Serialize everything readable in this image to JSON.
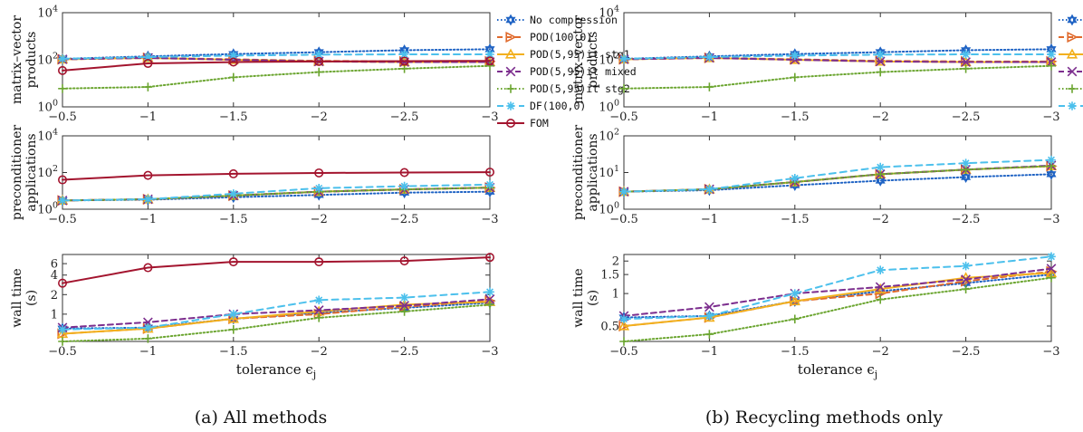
{
  "captions": {
    "a": "(a) All methods",
    "b": "(b) Recycling methods only"
  },
  "colors": {
    "No compression": "#1f63c4",
    "POD(100,0)": "#e06a2c",
    "POD(5,95)it stg1": "#f2b01e",
    "POD(5,95)it mixed": "#7c2e8e",
    "POD(5,95)it stg2": "#6ba530",
    "DF(100,0)": "#4cc0ec",
    "FOM": "#a3142e"
  },
  "chart_data": [
    {
      "id": "a-matvec",
      "type": "line",
      "yscale": "log",
      "ylabel_lines": [
        "matrix–vector",
        "products"
      ],
      "ylim": [
        1,
        10000
      ],
      "yticks": [
        1,
        100,
        10000
      ],
      "ytick_labels": [
        "10^0",
        "10^2",
        "10^4"
      ],
      "xlim": [
        -0.5,
        -3
      ],
      "x": [
        -0.5,
        -1,
        -1.5,
        -2,
        -2.5,
        -3
      ],
      "xtick_labels": [
        "−0.5",
        "−1",
        "−1.5",
        "−2",
        "−2.5",
        "−3"
      ],
      "legend": {
        "position": "right",
        "entries": [
          "No compression",
          "POD(100,0)",
          "POD(5,95)it stg1",
          "POD(5,95)it mixed",
          "POD(5,95)it stg2",
          "DF(100,0)",
          "FOM"
        ]
      },
      "series": [
        {
          "name": "No compression",
          "values": [
            110,
            140,
            175,
            210,
            255,
            280
          ]
        },
        {
          "name": "POD(100,0)",
          "values": [
            105,
            120,
            105,
            90,
            85,
            85
          ]
        },
        {
          "name": "POD(5,95)it stg1",
          "values": [
            105,
            120,
            100,
            85,
            80,
            80
          ]
        },
        {
          "name": "POD(5,95)it mixed",
          "values": [
            105,
            120,
            100,
            85,
            80,
            80
          ]
        },
        {
          "name": "POD(5,95)it stg2",
          "values": [
            6,
            7,
            18,
            30,
            42,
            55
          ]
        },
        {
          "name": "DF(100,0)",
          "values": [
            110,
            130,
            150,
            165,
            170,
            170
          ]
        },
        {
          "name": "FOM",
          "values": [
            35,
            70,
            80,
            85,
            88,
            90
          ]
        }
      ]
    },
    {
      "id": "a-precond",
      "type": "line",
      "yscale": "log",
      "ylabel_lines": [
        "preconditioner",
        "applications"
      ],
      "ylim": [
        1,
        10000
      ],
      "yticks": [
        1,
        100,
        10000
      ],
      "ytick_labels": [
        "10^0",
        "10^2",
        "10^4"
      ],
      "xlim": [
        -0.5,
        -3
      ],
      "x": [
        -0.5,
        -1,
        -1.5,
        -2,
        -2.5,
        -3
      ],
      "xtick_labels": [
        "−0.5",
        "−1",
        "−1.5",
        "−2",
        "−2.5",
        "−3"
      ],
      "series": [
        {
          "name": "No compression",
          "values": [
            3,
            3.3,
            4.5,
            6,
            8,
            9
          ]
        },
        {
          "name": "POD(100,0)",
          "values": [
            3,
            3.5,
            5.5,
            9,
            12,
            15
          ]
        },
        {
          "name": "POD(5,95)it stg1",
          "values": [
            3,
            3.5,
            5.5,
            9,
            12,
            15
          ]
        },
        {
          "name": "POD(5,95)it mixed",
          "values": [
            3,
            3.5,
            5.5,
            9,
            12,
            15
          ]
        },
        {
          "name": "POD(5,95)it stg2",
          "values": [
            3,
            3.5,
            5.5,
            9,
            12,
            15
          ]
        },
        {
          "name": "DF(100,0)",
          "values": [
            3,
            3.5,
            7,
            14,
            18,
            22
          ]
        },
        {
          "name": "FOM",
          "values": [
            40,
            70,
            85,
            95,
            100,
            105
          ]
        }
      ]
    },
    {
      "id": "a-walltime",
      "type": "line",
      "yscale": "log",
      "ylabel_lines": [
        "wall time",
        "(s)"
      ],
      "ylim": [
        0.38,
        8.3
      ],
      "yticks": [
        1,
        2,
        4,
        6
      ],
      "ytick_labels": [
        "1",
        "2",
        "4",
        "6"
      ],
      "xlim": [
        -0.5,
        -3
      ],
      "x": [
        -0.5,
        -1,
        -1.5,
        -2,
        -2.5,
        -3
      ],
      "xtick_labels": [
        "−0.5",
        "−1",
        "−1.5",
        "−2",
        "−2.5",
        "−3"
      ],
      "xlabel": "tolerance ϵ",
      "xlabel_sub": "j",
      "series": [
        {
          "name": "No compression",
          "values": [
            0.6,
            0.62,
            0.85,
            1.05,
            1.25,
            1.5
          ]
        },
        {
          "name": "POD(100,0)",
          "values": [
            0.5,
            0.6,
            0.85,
            1.0,
            1.3,
            1.6
          ]
        },
        {
          "name": "POD(5,95)it stg1",
          "values": [
            0.5,
            0.6,
            0.85,
            1.1,
            1.4,
            1.55
          ]
        },
        {
          "name": "POD(5,95)it mixed",
          "values": [
            0.62,
            0.75,
            1.0,
            1.15,
            1.35,
            1.7
          ]
        },
        {
          "name": "POD(5,95)it stg2",
          "values": [
            0.38,
            0.42,
            0.58,
            0.88,
            1.1,
            1.4
          ]
        },
        {
          "name": "DF(100,0)",
          "values": [
            0.58,
            0.62,
            1.0,
            1.65,
            1.8,
            2.2
          ]
        },
        {
          "name": "FOM",
          "values": [
            3.0,
            5.2,
            6.4,
            6.4,
            6.6,
            7.5
          ]
        }
      ]
    },
    {
      "id": "b-matvec",
      "type": "line",
      "yscale": "log",
      "ylabel_lines": [
        "matrix–vector",
        "products"
      ],
      "ylim": [
        1,
        10000
      ],
      "yticks": [
        1,
        100,
        10000
      ],
      "ytick_labels": [
        "10^0",
        "10^2",
        "10^4"
      ],
      "xlim": [
        -0.5,
        -3
      ],
      "x": [
        -0.5,
        -1,
        -1.5,
        -2,
        -2.5,
        -3
      ],
      "xtick_labels": [
        "−0.5",
        "−1",
        "−1.5",
        "−2",
        "−2.5",
        "−3"
      ],
      "legend": {
        "position": "right",
        "entries": [
          "No compression",
          "POD(100,0)",
          "POD(5,95)it stg1",
          "POD(5,95)it mixed",
          "POD(5,95)it stg2",
          "DF(100,0)"
        ]
      },
      "series": [
        {
          "name": "No compression",
          "values": [
            110,
            140,
            175,
            210,
            255,
            280
          ]
        },
        {
          "name": "POD(100,0)",
          "values": [
            105,
            120,
            105,
            90,
            85,
            85
          ]
        },
        {
          "name": "POD(5,95)it stg1",
          "values": [
            105,
            120,
            100,
            85,
            80,
            80
          ]
        },
        {
          "name": "POD(5,95)it mixed",
          "values": [
            105,
            120,
            100,
            85,
            80,
            80
          ]
        },
        {
          "name": "POD(5,95)it stg2",
          "values": [
            6,
            7,
            18,
            30,
            42,
            55
          ]
        },
        {
          "name": "DF(100,0)",
          "values": [
            110,
            130,
            150,
            165,
            170,
            170
          ]
        }
      ]
    },
    {
      "id": "b-precond",
      "type": "line",
      "yscale": "log",
      "ylabel_lines": [
        "preconditioner",
        "applications"
      ],
      "ylim": [
        1,
        100
      ],
      "yticks": [
        1,
        10,
        100
      ],
      "ytick_labels": [
        "10^0",
        "10^1",
        "10^2"
      ],
      "xlim": [
        -0.5,
        -3
      ],
      "x": [
        -0.5,
        -1,
        -1.5,
        -2,
        -2.5,
        -3
      ],
      "xtick_labels": [
        "−0.5",
        "−1",
        "−1.5",
        "−2",
        "−2.5",
        "−3"
      ],
      "series": [
        {
          "name": "No compression",
          "values": [
            3,
            3.3,
            4.5,
            6,
            7.5,
            9
          ]
        },
        {
          "name": "POD(100,0)",
          "values": [
            3,
            3.5,
            5.5,
            9,
            12,
            15
          ]
        },
        {
          "name": "POD(5,95)it stg1",
          "values": [
            3,
            3.5,
            5.5,
            9,
            12,
            15
          ]
        },
        {
          "name": "POD(5,95)it mixed",
          "values": [
            3,
            3.5,
            5.5,
            9,
            12,
            15.5
          ]
        },
        {
          "name": "POD(5,95)it stg2",
          "values": [
            3,
            3.5,
            5.5,
            9,
            12,
            15
          ]
        },
        {
          "name": "DF(100,0)",
          "values": [
            3,
            3.5,
            7,
            14,
            18,
            22
          ]
        }
      ]
    },
    {
      "id": "b-walltime",
      "type": "line",
      "yscale": "log",
      "ylabel_lines": [
        "wall time",
        "(s)"
      ],
      "ylim": [
        0.36,
        2.3
      ],
      "yticks": [
        0.5,
        1,
        1.5,
        2
      ],
      "ytick_labels": [
        "0.5",
        "1",
        "1.5",
        "2"
      ],
      "xlim": [
        -0.5,
        -3
      ],
      "x": [
        -0.5,
        -1,
        -1.5,
        -2,
        -2.5,
        -3
      ],
      "xtick_labels": [
        "−0.5",
        "−1",
        "−1.5",
        "−2",
        "−2.5",
        "−3"
      ],
      "xlabel": "tolerance ϵ",
      "xlabel_sub": "j",
      "series": [
        {
          "name": "No compression",
          "values": [
            0.6,
            0.62,
            0.85,
            1.05,
            1.25,
            1.5
          ]
        },
        {
          "name": "POD(100,0)",
          "values": [
            0.5,
            0.6,
            0.85,
            1.0,
            1.3,
            1.6
          ]
        },
        {
          "name": "POD(5,95)it stg1",
          "values": [
            0.5,
            0.6,
            0.85,
            1.1,
            1.4,
            1.55
          ]
        },
        {
          "name": "POD(5,95)it mixed",
          "values": [
            0.62,
            0.75,
            1.0,
            1.15,
            1.35,
            1.7
          ]
        },
        {
          "name": "POD(5,95)it stg2",
          "values": [
            0.36,
            0.42,
            0.58,
            0.88,
            1.1,
            1.4
          ]
        },
        {
          "name": "DF(100,0)",
          "values": [
            0.58,
            0.62,
            1.0,
            1.65,
            1.8,
            2.2
          ]
        }
      ]
    }
  ]
}
